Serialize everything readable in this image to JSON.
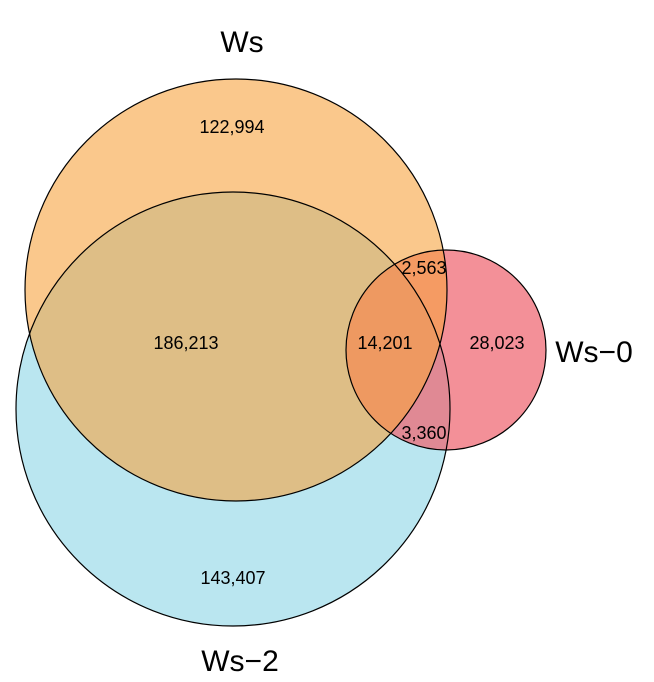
{
  "sets": [
    {
      "id": "ws",
      "label": "Ws",
      "color": "#f7a440"
    },
    {
      "id": "ws2",
      "label": "Ws−2",
      "color": "#8fd6e6"
    },
    {
      "id": "ws0",
      "label": "Ws−0",
      "color": "#ee6570"
    }
  ],
  "regions": {
    "ws_only": "122,994",
    "ws2_only": "143,407",
    "ws0_only": "28,023",
    "ws_ws2": "186,213",
    "ws_ws0": "2,563",
    "ws2_ws0": "3,360",
    "all_three": "14,201"
  }
}
